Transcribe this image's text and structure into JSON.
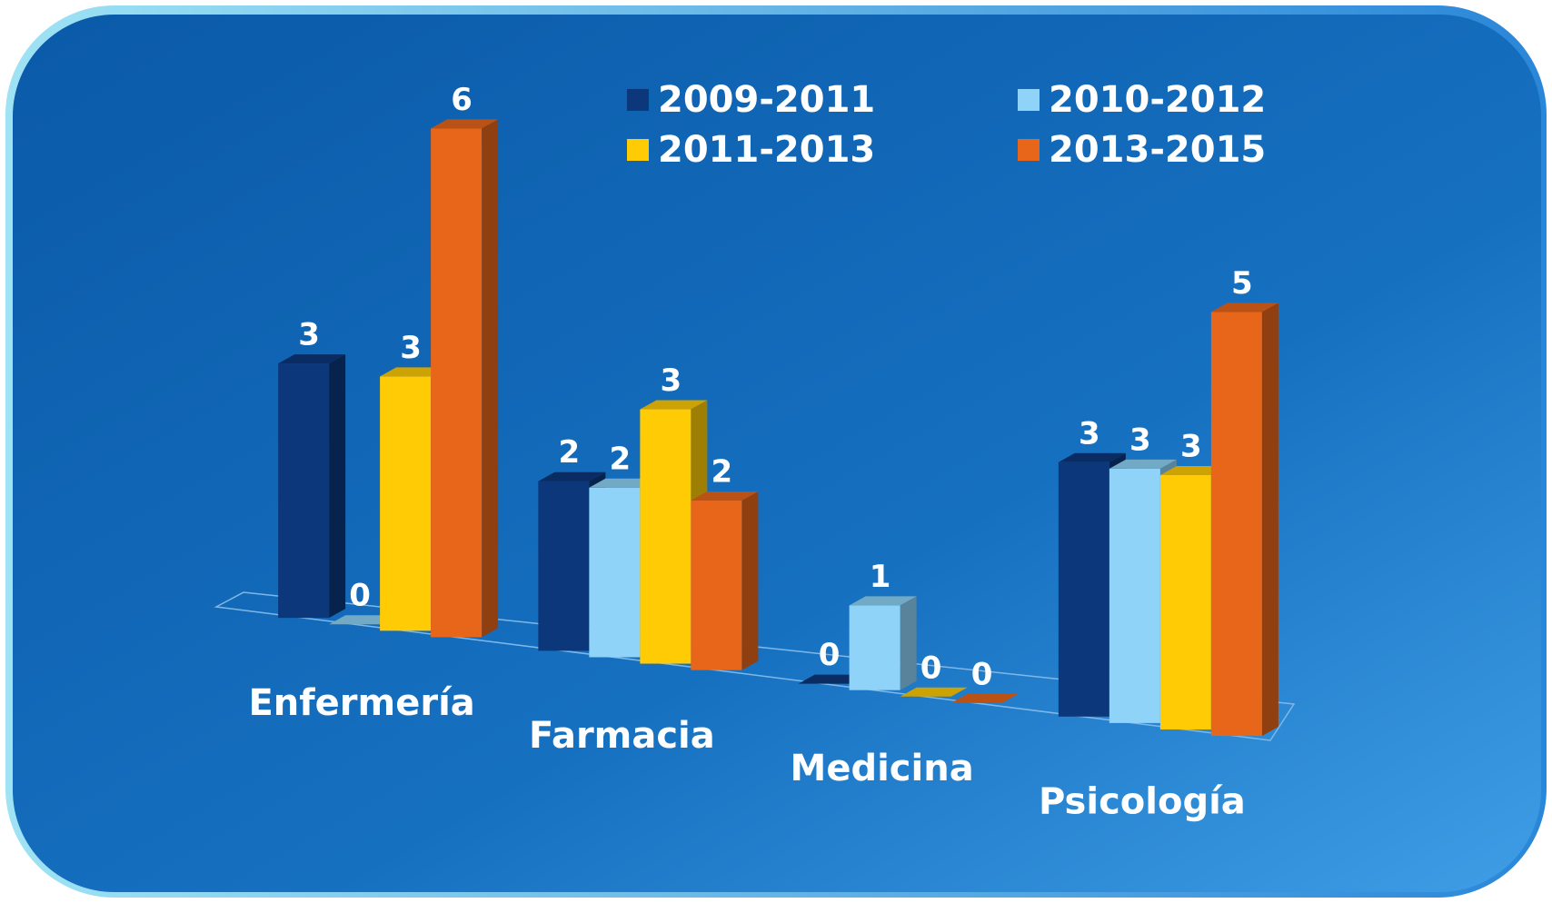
{
  "chart_data": {
    "type": "bar3d",
    "categories": [
      "Enfermería",
      "Farmacia",
      "Medicina",
      "Psicología"
    ],
    "series": [
      {
        "name": "2009-2011",
        "color": "#0c377a",
        "values": [
          3,
          2,
          0,
          3
        ]
      },
      {
        "name": "2010-2012",
        "color": "#8fd4f8",
        "values": [
          0,
          2,
          1,
          3
        ]
      },
      {
        "name": "2011-2013",
        "color": "#ffcb05",
        "values": [
          3,
          3,
          0,
          3
        ]
      },
      {
        "name": "2013-2015",
        "color": "#e8661a",
        "values": [
          6,
          2,
          0,
          5
        ]
      }
    ]
  }
}
